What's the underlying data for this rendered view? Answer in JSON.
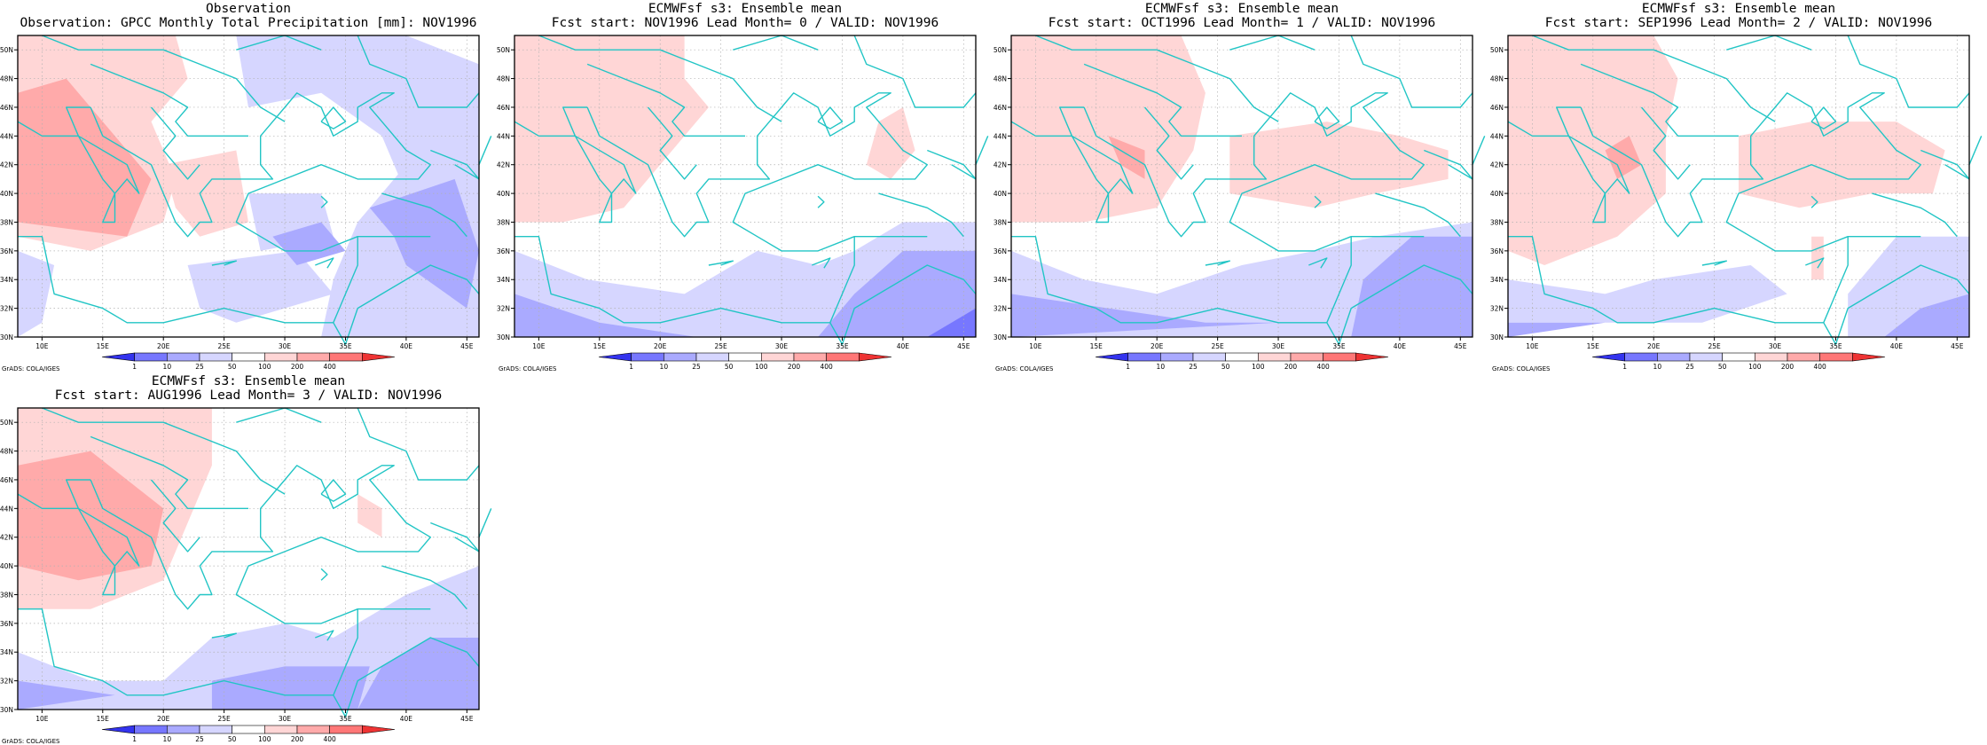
{
  "panels": [
    {
      "title1": "Observation",
      "title2": "Observation: GPCC Monthly Total Precipitation [mm]: NOV1996",
      "variant": "obs"
    },
    {
      "title1": "ECMWFsf s3: Ensemble mean",
      "title2": "Fcst start: NOV1996  Lead Month= 0 / VALID: NOV1996",
      "variant": "lead0"
    },
    {
      "title1": "ECMWFsf s3: Ensemble mean",
      "title2": "Fcst start: OCT1996  Lead Month= 1 / VALID: NOV1996",
      "variant": "lead1"
    },
    {
      "title1": "ECMWFsf s3: Ensemble mean",
      "title2": "Fcst start: SEP1996  Lead Month= 2 / VALID: NOV1996",
      "variant": "lead2"
    },
    {
      "title1": "ECMWFsf s3: Ensemble mean",
      "title2": "Fcst start: AUG1996  Lead Month= 3 / VALID: NOV1996",
      "variant": "lead3"
    }
  ],
  "axes": {
    "lon_ticks": [
      "10E",
      "15E",
      "20E",
      "25E",
      "30E",
      "35E",
      "40E",
      "45E"
    ],
    "lat_ticks": [
      "30N",
      "32N",
      "34N",
      "36N",
      "38N",
      "40N",
      "42N",
      "44N",
      "46N",
      "48N",
      "50N"
    ],
    "lon_range": [
      8,
      46
    ],
    "lat_range": [
      30,
      51
    ]
  },
  "colorbar": {
    "labels": [
      "1",
      "10",
      "25",
      "50",
      "100",
      "200",
      "400"
    ],
    "colors": [
      "#3333ee",
      "#7777ff",
      "#aaaaff",
      "#d6d6ff",
      "#ffffff",
      "#ffd6d6",
      "#ffaaaa",
      "#ff7777",
      "#ee3333"
    ]
  },
  "credit": "GrADS: COLA/IGES",
  "colors": {
    "coast": "#22c5c5",
    "frame": "#000000",
    "grid": "#b0b0b0",
    "pos1": "#ffd6d6",
    "pos2": "#ffaaaa",
    "pos3": "#ff7777",
    "neg1": "#d6d6ff",
    "neg2": "#aaaaff",
    "neg3": "#7777ff"
  }
}
